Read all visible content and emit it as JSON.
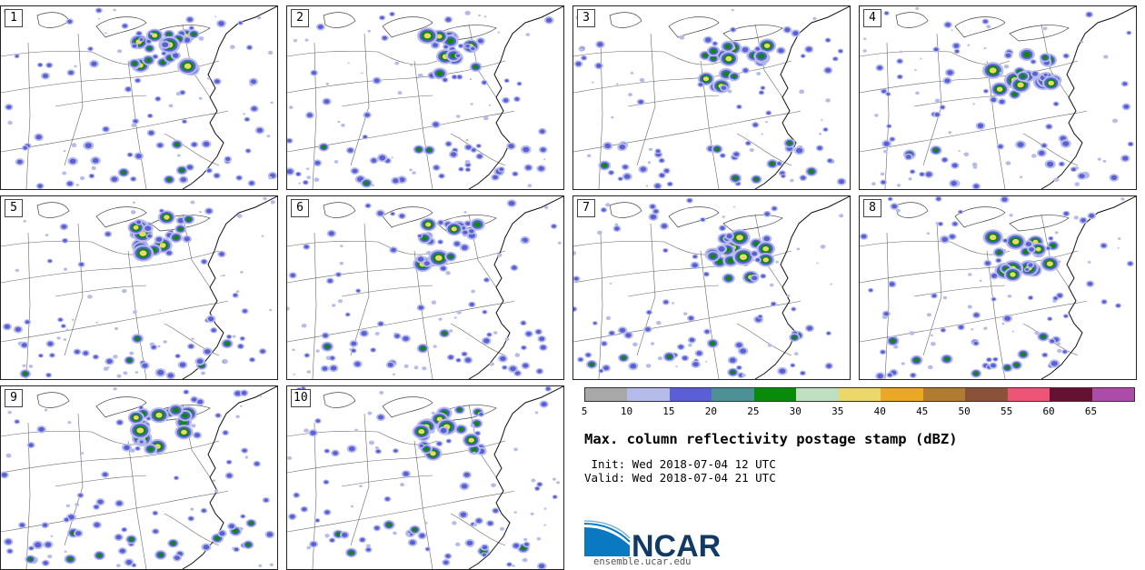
{
  "panels": [
    {
      "label": "1",
      "seed": 11
    },
    {
      "label": "2",
      "seed": 23
    },
    {
      "label": "3",
      "seed": 37
    },
    {
      "label": "4",
      "seed": 41
    },
    {
      "label": "5",
      "seed": 53
    },
    {
      "label": "6",
      "seed": 67
    },
    {
      "label": "7",
      "seed": 71
    },
    {
      "label": "8",
      "seed": 83
    },
    {
      "label": "9",
      "seed": 97
    },
    {
      "label": "10",
      "seed": 109
    }
  ],
  "colorbar": {
    "colors": [
      "#a8a8a8",
      "#b5bcea",
      "#5a5fd6",
      "#4f9096",
      "#0a8a0a",
      "#bfe0c0",
      "#ecd86a",
      "#eba826",
      "#b07c32",
      "#8a5238",
      "#ee5476",
      "#641232",
      "#ab4ca8"
    ],
    "ticks": [
      "5",
      "10",
      "15",
      "20",
      "25",
      "30",
      "35",
      "40",
      "45",
      "50",
      "55",
      "60",
      "65"
    ]
  },
  "title": "Max. column reflectivity postage stamp (dBZ)",
  "init": " Init: Wed 2018-07-04 12 UTC",
  "valid": "Valid: Wed 2018-07-04 21 UTC",
  "logo": {
    "text": "NCAR",
    "url": "ensemble.ucar.edu"
  }
}
